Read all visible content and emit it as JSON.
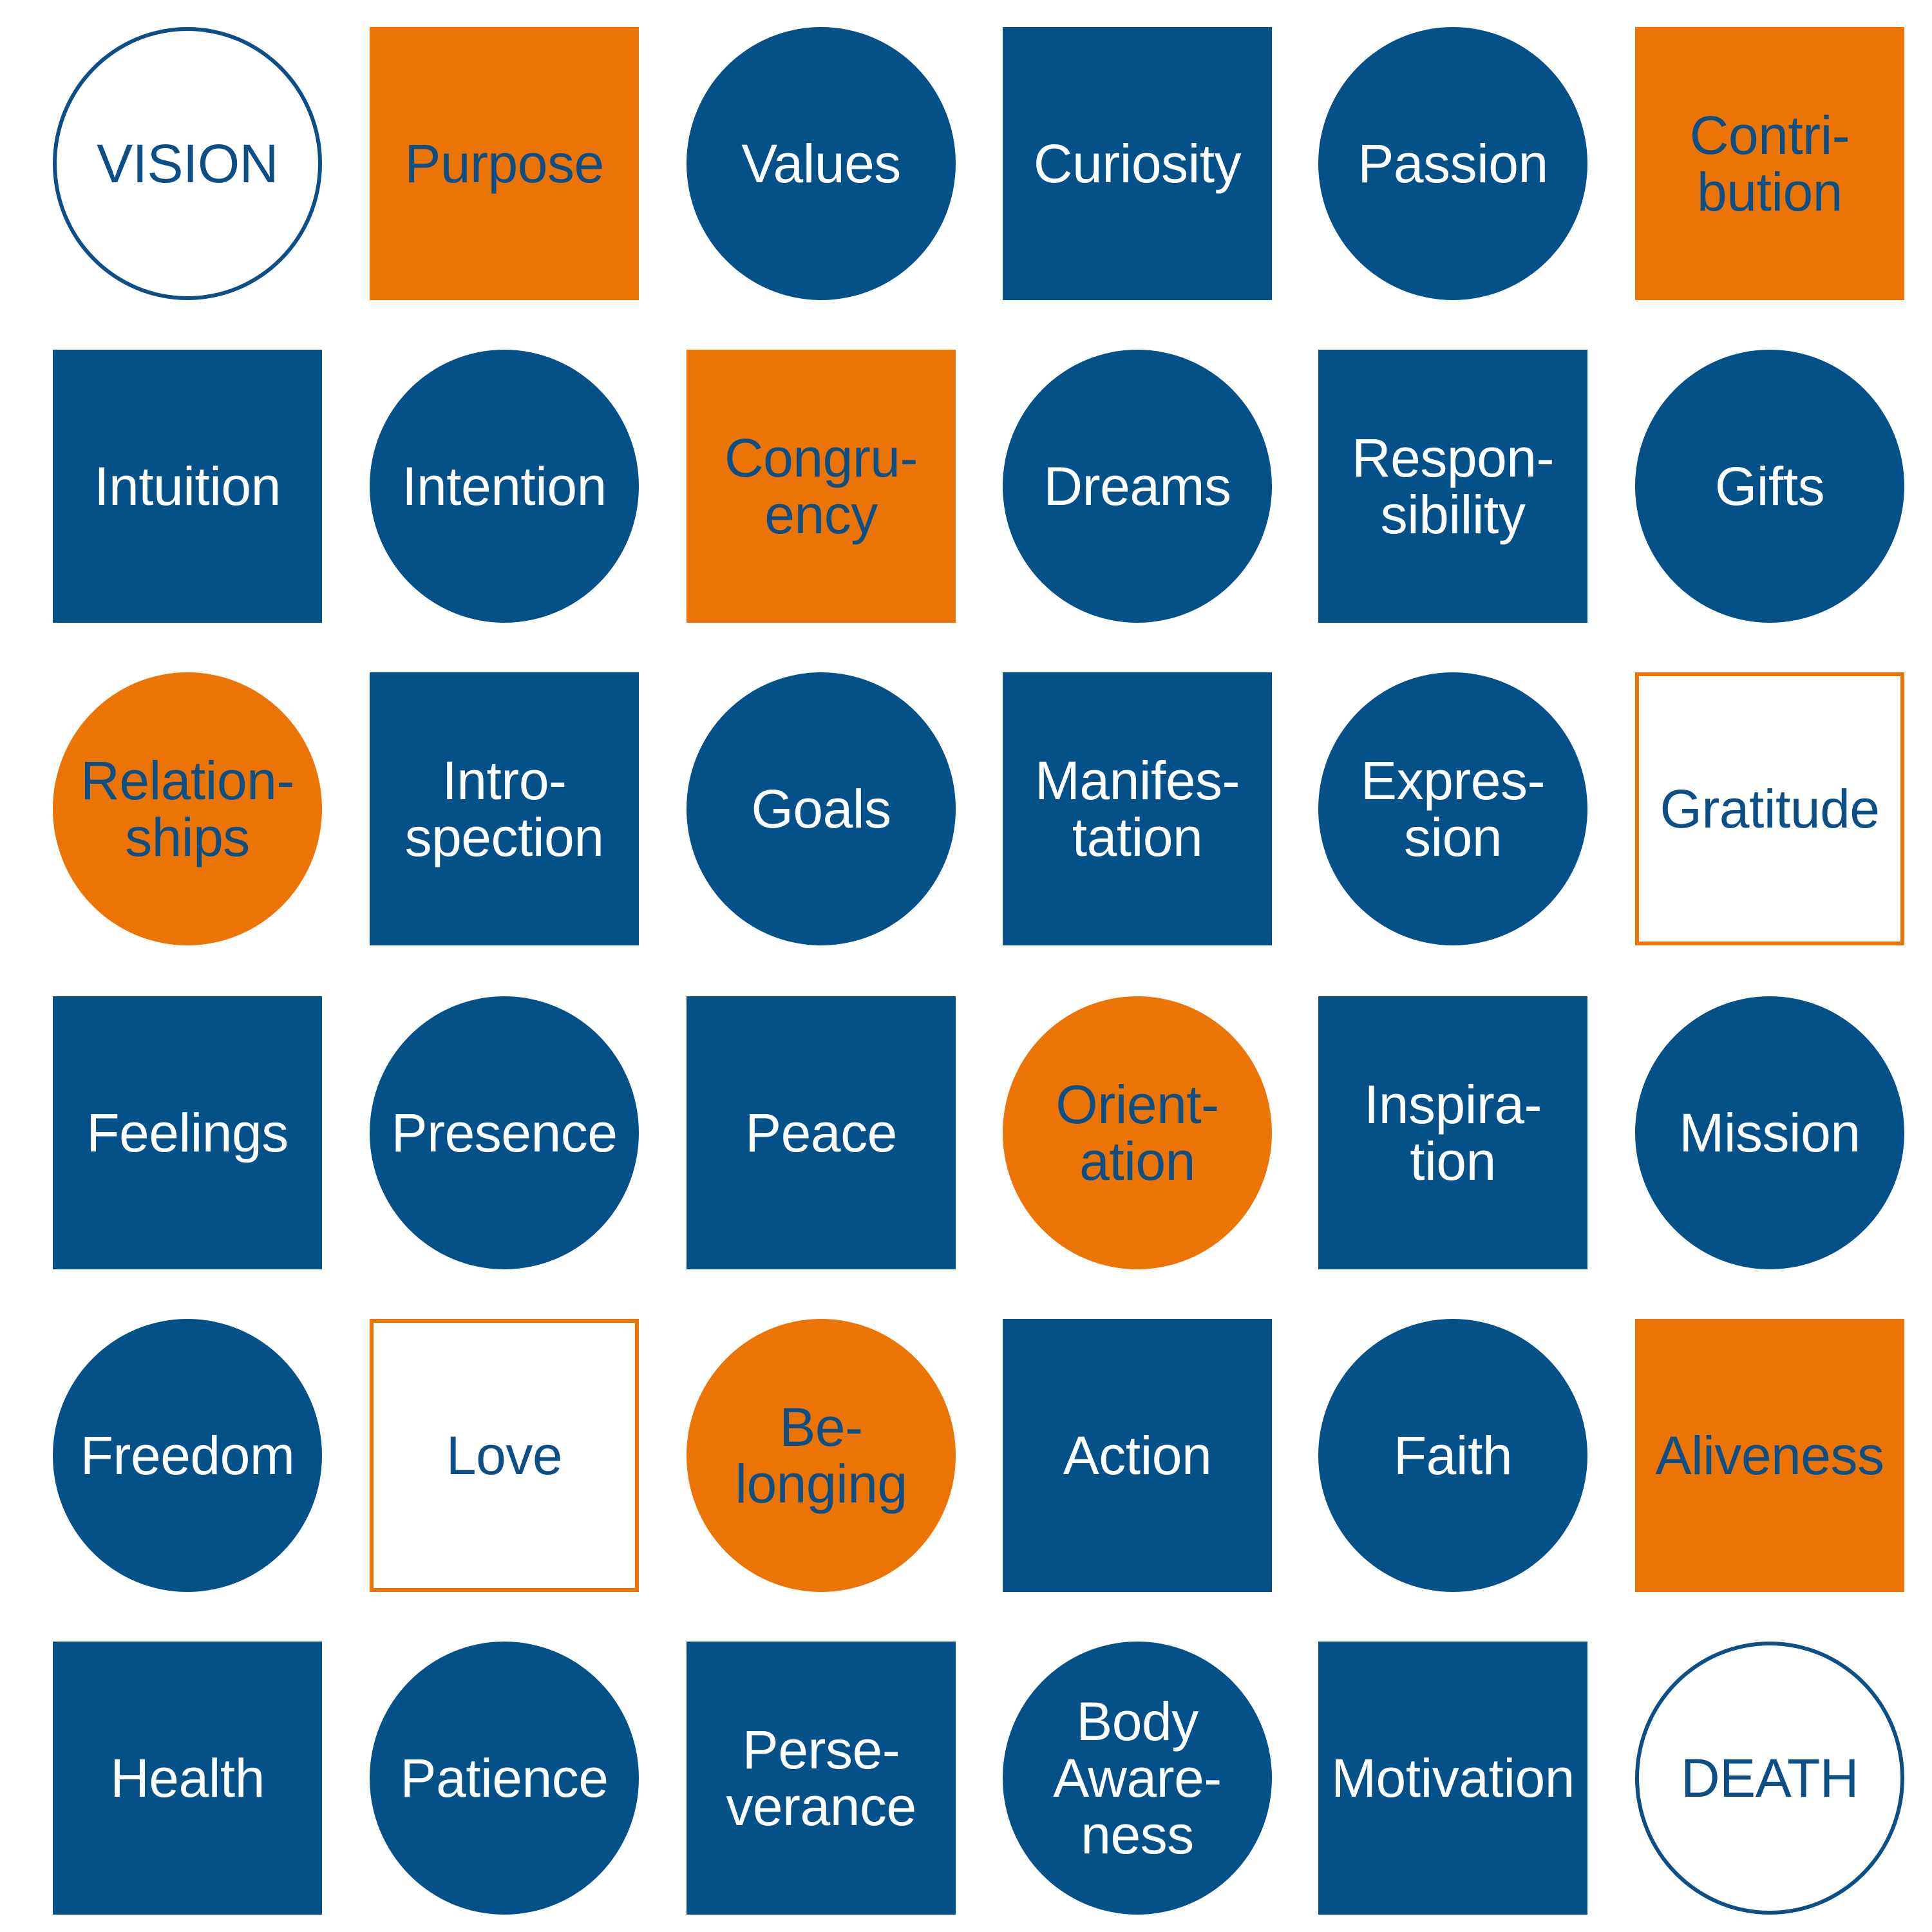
{
  "colors": {
    "blue": "#045088",
    "orange": "#ec7404",
    "background": "#ffffff"
  },
  "tiles": [
    {
      "text": "VISION",
      "shape": "circle",
      "style": "outline-blue"
    },
    {
      "text": "Purpose",
      "shape": "square",
      "style": "fill-orange"
    },
    {
      "text": "Values",
      "shape": "circle",
      "style": "fill-blue"
    },
    {
      "text": "Curiosity",
      "shape": "square",
      "style": "fill-blue"
    },
    {
      "text": "Passion",
      "shape": "circle",
      "style": "fill-blue"
    },
    {
      "text": "Contri-\nbution",
      "shape": "square",
      "style": "fill-orange"
    },
    {
      "text": "Intuition",
      "shape": "square",
      "style": "fill-blue"
    },
    {
      "text": "Intention",
      "shape": "circle",
      "style": "fill-blue"
    },
    {
      "text": "Congru-\nency",
      "shape": "square",
      "style": "fill-orange"
    },
    {
      "text": "Dreams",
      "shape": "circle",
      "style": "fill-blue"
    },
    {
      "text": "Respon-\nsibility",
      "shape": "square",
      "style": "fill-blue"
    },
    {
      "text": "Gifts",
      "shape": "circle",
      "style": "fill-blue"
    },
    {
      "text": "Relation-\nships",
      "shape": "circle",
      "style": "fill-orange"
    },
    {
      "text": "Intro-\nspection",
      "shape": "square",
      "style": "fill-blue"
    },
    {
      "text": "Goals",
      "shape": "circle",
      "style": "fill-blue"
    },
    {
      "text": "Manifes-\ntation",
      "shape": "square",
      "style": "fill-blue"
    },
    {
      "text": "Expres-\nsion",
      "shape": "circle",
      "style": "fill-blue"
    },
    {
      "text": "Gratitude",
      "shape": "square",
      "style": "outline-orange"
    },
    {
      "text": "Feelings",
      "shape": "square",
      "style": "fill-blue"
    },
    {
      "text": "Presence",
      "shape": "circle",
      "style": "fill-blue"
    },
    {
      "text": "Peace",
      "shape": "square",
      "style": "fill-blue"
    },
    {
      "text": "Orient-\nation",
      "shape": "circle",
      "style": "fill-orange"
    },
    {
      "text": "Inspira-\ntion",
      "shape": "square",
      "style": "fill-blue"
    },
    {
      "text": "Mission",
      "shape": "circle",
      "style": "fill-blue"
    },
    {
      "text": "Freedom",
      "shape": "circle",
      "style": "fill-blue"
    },
    {
      "text": "Love",
      "shape": "square",
      "style": "outline-orange"
    },
    {
      "text": "Be-\nlonging",
      "shape": "circle",
      "style": "fill-orange"
    },
    {
      "text": "Action",
      "shape": "square",
      "style": "fill-blue"
    },
    {
      "text": "Faith",
      "shape": "circle",
      "style": "fill-blue"
    },
    {
      "text": "Aliveness",
      "shape": "square",
      "style": "fill-orange"
    },
    {
      "text": "Health",
      "shape": "square",
      "style": "fill-blue"
    },
    {
      "text": "Patience",
      "shape": "circle",
      "style": "fill-blue"
    },
    {
      "text": "Perse-\nverance",
      "shape": "square",
      "style": "fill-blue"
    },
    {
      "text": "Body\nAware-\nness",
      "shape": "circle",
      "style": "fill-blue"
    },
    {
      "text": "Motivation",
      "shape": "square",
      "style": "fill-blue"
    },
    {
      "text": "DEATH",
      "shape": "circle",
      "style": "outline-blue"
    }
  ]
}
